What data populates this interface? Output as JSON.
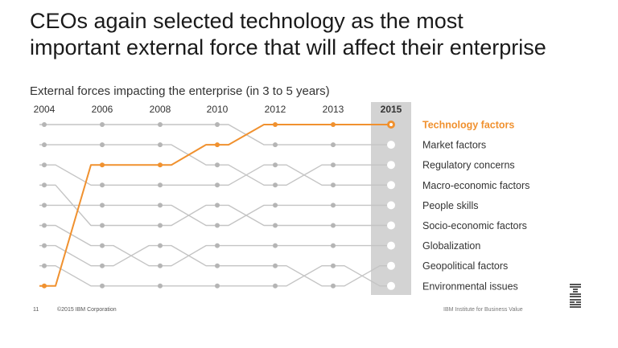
{
  "title_lines": [
    "CEOs again selected technology as the most",
    "important external force that will affect their enterprise"
  ],
  "footer": {
    "page_number": "11",
    "copyright": "©2015 IBM Corporation",
    "institute": "IBM Institute for Business Value",
    "logo_text": "IBM"
  },
  "colors": {
    "highlight": "#f0912f",
    "line": "#c4c4c4",
    "dot": "#b5b5b5",
    "column_bg": "#d3d3d3"
  },
  "chart_data": {
    "type": "bump",
    "subtitle": "External forces impacting the enterprise (in 3 to 5 years)",
    "years": [
      "2004",
      "2006",
      "2008",
      "2010",
      "2012",
      "2013",
      "2015"
    ],
    "highlight_year": "2015",
    "rank_min": 1,
    "rank_max": 9,
    "highlight_series": "Technology factors",
    "series": [
      {
        "name": "Technology factors",
        "ranks": [
          9,
          3,
          3,
          2,
          1,
          1,
          1
        ]
      },
      {
        "name": "Market factors",
        "ranks": [
          1,
          1,
          1,
          1,
          2,
          2,
          2
        ]
      },
      {
        "name": "Regulatory concerns",
        "ranks": [
          2,
          2,
          2,
          3,
          4,
          3,
          3
        ]
      },
      {
        "name": "Macro-economic factors",
        "ranks": [
          3,
          4,
          4,
          4,
          3,
          4,
          4
        ]
      },
      {
        "name": "People skills",
        "ranks": [
          5,
          5,
          5,
          6,
          5,
          5,
          5
        ]
      },
      {
        "name": "Socio-economic factors",
        "ranks": [
          4,
          6,
          6,
          5,
          6,
          6,
          6
        ]
      },
      {
        "name": "Globalization",
        "ranks": [
          6,
          7,
          8,
          7,
          7,
          7,
          7
        ]
      },
      {
        "name": "Geopolitical factors",
        "ranks": [
          7,
          8,
          7,
          8,
          8,
          9,
          8
        ]
      },
      {
        "name": "Environmental issues",
        "ranks": [
          8,
          9,
          9,
          9,
          9,
          8,
          9
        ]
      }
    ]
  }
}
